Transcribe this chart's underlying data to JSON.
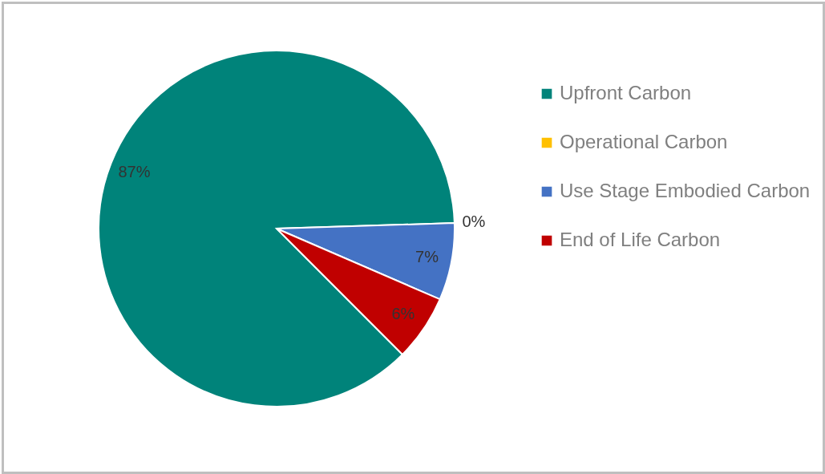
{
  "chart_data": {
    "type": "pie",
    "categories": [
      "Upfront Carbon",
      "Operational Carbon",
      "Use Stage Embodied Carbon",
      "End of Life Carbon"
    ],
    "values": [
      87,
      0,
      7,
      6
    ],
    "value_labels": [
      "87%",
      "0%",
      "7%",
      "6%"
    ],
    "colors": [
      "#00837a",
      "#ffc000",
      "#4472c4",
      "#c00000"
    ],
    "legend": "right"
  }
}
